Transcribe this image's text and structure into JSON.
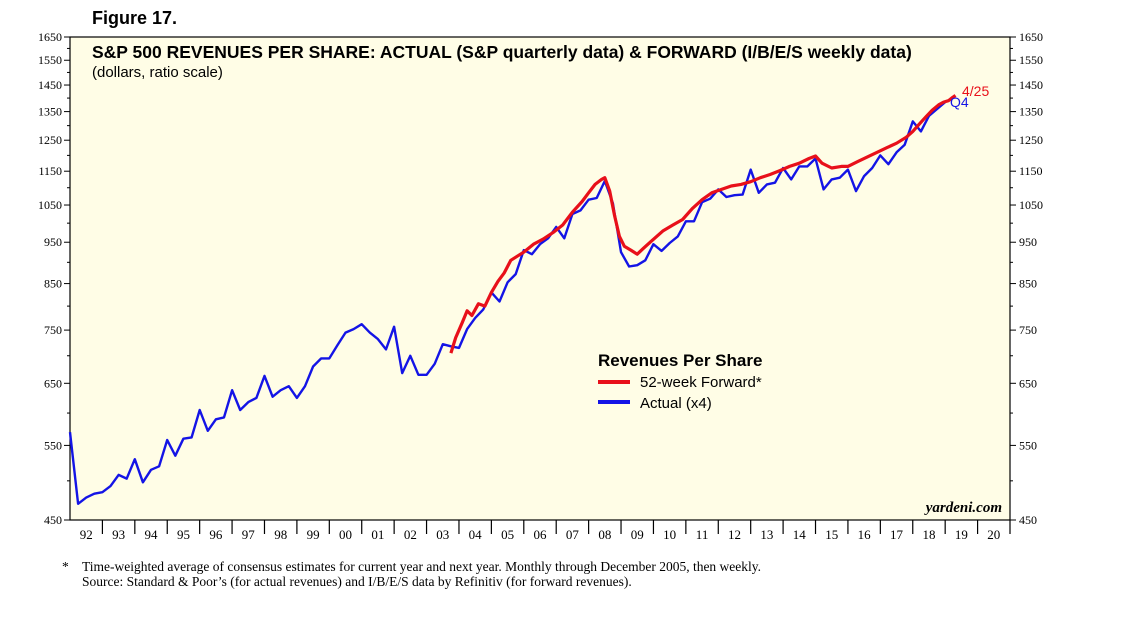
{
  "figure_label": "Figure 17.",
  "credit": "yardeni.com",
  "footnotes": {
    "mark": "*",
    "line1": "Time-weighted average of consensus estimates for current year and next year. Monthly through December 2005, then weekly.",
    "line2": "Source: Standard & Poor’s (for actual revenues) and I/B/E/S data by Refinitiv (for forward revenues)."
  },
  "colors": {
    "forward": "#e8101a",
    "actual": "#1414e6",
    "plot_bg": "#fffde6"
  },
  "chart_data": {
    "type": "line",
    "title": "S&P 500 REVENUES PER SHARE: ACTUAL (S&P quarterly data) & FORWARD (I/B/E/S weekly data)",
    "subtitle": "(dollars, ratio scale)",
    "y_scale": "log",
    "ylim": [
      450,
      1650
    ],
    "y_ticks": [
      450,
      550,
      650,
      750,
      850,
      950,
      1050,
      1150,
      1250,
      1350,
      1450,
      1550,
      1650
    ],
    "x_range": [
      1992,
      2021
    ],
    "x_tick_labels": [
      "92",
      "93",
      "94",
      "95",
      "96",
      "97",
      "98",
      "99",
      "00",
      "01",
      "02",
      "03",
      "04",
      "05",
      "06",
      "07",
      "08",
      "09",
      "10",
      "11",
      "12",
      "13",
      "14",
      "15",
      "16",
      "17",
      "18",
      "19",
      "20"
    ],
    "legend": {
      "title": "Revenues Per Share",
      "position": "center-right"
    },
    "annotations": [
      {
        "text": "4/25",
        "series": "52-week Forward*"
      },
      {
        "text": "Q4",
        "series": "Actual (x4)"
      }
    ],
    "series": [
      {
        "name": "52-week Forward*",
        "points": [
          [
            2003.75,
            705
          ],
          [
            2003.9,
            735
          ],
          [
            2004.1,
            765
          ],
          [
            2004.25,
            790
          ],
          [
            2004.4,
            780
          ],
          [
            2004.6,
            805
          ],
          [
            2004.8,
            800
          ],
          [
            2005.0,
            830
          ],
          [
            2005.2,
            855
          ],
          [
            2005.4,
            875
          ],
          [
            2005.6,
            905
          ],
          [
            2005.8,
            915
          ],
          [
            2006.0,
            925
          ],
          [
            2006.3,
            945
          ],
          [
            2006.6,
            958
          ],
          [
            2006.9,
            975
          ],
          [
            2007.2,
            995
          ],
          [
            2007.5,
            1030
          ],
          [
            2007.8,
            1060
          ],
          [
            2008.0,
            1085
          ],
          [
            2008.2,
            1110
          ],
          [
            2008.4,
            1125
          ],
          [
            2008.5,
            1130
          ],
          [
            2008.65,
            1090
          ],
          [
            2008.8,
            1020
          ],
          [
            2008.95,
            965
          ],
          [
            2009.1,
            940
          ],
          [
            2009.3,
            930
          ],
          [
            2009.5,
            920
          ],
          [
            2009.7,
            935
          ],
          [
            2009.9,
            950
          ],
          [
            2010.1,
            965
          ],
          [
            2010.3,
            980
          ],
          [
            2010.6,
            995
          ],
          [
            2010.9,
            1010
          ],
          [
            2011.2,
            1040
          ],
          [
            2011.5,
            1065
          ],
          [
            2011.8,
            1085
          ],
          [
            2012.1,
            1095
          ],
          [
            2012.4,
            1105
          ],
          [
            2012.7,
            1110
          ],
          [
            2013.0,
            1118
          ],
          [
            2013.3,
            1130
          ],
          [
            2013.6,
            1140
          ],
          [
            2013.9,
            1152
          ],
          [
            2014.2,
            1165
          ],
          [
            2014.5,
            1175
          ],
          [
            2014.8,
            1190
          ],
          [
            2015.0,
            1198
          ],
          [
            2015.2,
            1175
          ],
          [
            2015.5,
            1160
          ],
          [
            2015.8,
            1165
          ],
          [
            2016.0,
            1165
          ],
          [
            2016.3,
            1180
          ],
          [
            2016.6,
            1195
          ],
          [
            2016.9,
            1210
          ],
          [
            2017.2,
            1225
          ],
          [
            2017.5,
            1240
          ],
          [
            2017.8,
            1260
          ],
          [
            2018.0,
            1280
          ],
          [
            2018.2,
            1305
          ],
          [
            2018.4,
            1330
          ],
          [
            2018.6,
            1355
          ],
          [
            2018.8,
            1375
          ],
          [
            2018.95,
            1385
          ],
          [
            2019.1,
            1390
          ],
          [
            2019.2,
            1400
          ],
          [
            2019.32,
            1410
          ]
        ]
      },
      {
        "name": "Actual (x4)",
        "points": [
          [
            1992.0,
            570
          ],
          [
            1992.25,
            470
          ],
          [
            1992.5,
            478
          ],
          [
            1992.75,
            483
          ],
          [
            1993.0,
            485
          ],
          [
            1993.25,
            493
          ],
          [
            1993.5,
            508
          ],
          [
            1993.75,
            503
          ],
          [
            1994.0,
            530
          ],
          [
            1994.25,
            498
          ],
          [
            1994.5,
            515
          ],
          [
            1994.75,
            520
          ],
          [
            1995.0,
            558
          ],
          [
            1995.25,
            535
          ],
          [
            1995.5,
            560
          ],
          [
            1995.75,
            562
          ],
          [
            1996.0,
            605
          ],
          [
            1996.25,
            572
          ],
          [
            1996.5,
            590
          ],
          [
            1996.75,
            593
          ],
          [
            1997.0,
            638
          ],
          [
            1997.25,
            605
          ],
          [
            1997.5,
            618
          ],
          [
            1997.75,
            625
          ],
          [
            1998.0,
            663
          ],
          [
            1998.25,
            627
          ],
          [
            1998.5,
            638
          ],
          [
            1998.75,
            645
          ],
          [
            1999.0,
            625
          ],
          [
            1999.25,
            645
          ],
          [
            1999.5,
            680
          ],
          [
            1999.75,
            695
          ],
          [
            2000.0,
            695
          ],
          [
            2000.25,
            720
          ],
          [
            2000.5,
            745
          ],
          [
            2000.75,
            752
          ],
          [
            2001.0,
            762
          ],
          [
            2001.25,
            745
          ],
          [
            2001.5,
            732
          ],
          [
            2001.75,
            712
          ],
          [
            2002.0,
            757
          ],
          [
            2002.25,
            668
          ],
          [
            2002.5,
            700
          ],
          [
            2002.75,
            665
          ],
          [
            2003.0,
            665
          ],
          [
            2003.25,
            685
          ],
          [
            2003.5,
            722
          ],
          [
            2003.75,
            718
          ],
          [
            2004.0,
            715
          ],
          [
            2004.25,
            752
          ],
          [
            2004.5,
            775
          ],
          [
            2004.75,
            793
          ],
          [
            2005.0,
            830
          ],
          [
            2005.25,
            810
          ],
          [
            2005.5,
            853
          ],
          [
            2005.75,
            872
          ],
          [
            2006.0,
            930
          ],
          [
            2006.25,
            920
          ],
          [
            2006.5,
            945
          ],
          [
            2006.75,
            960
          ],
          [
            2007.0,
            990
          ],
          [
            2007.25,
            960
          ],
          [
            2007.5,
            1025
          ],
          [
            2007.75,
            1035
          ],
          [
            2008.0,
            1065
          ],
          [
            2008.25,
            1070
          ],
          [
            2008.5,
            1120
          ],
          [
            2008.75,
            1055
          ],
          [
            2009.0,
            925
          ],
          [
            2009.25,
            890
          ],
          [
            2009.5,
            893
          ],
          [
            2009.75,
            905
          ],
          [
            2010.0,
            945
          ],
          [
            2010.25,
            928
          ],
          [
            2010.5,
            948
          ],
          [
            2010.75,
            965
          ],
          [
            2011.0,
            1005
          ],
          [
            2011.25,
            1005
          ],
          [
            2011.5,
            1058
          ],
          [
            2011.75,
            1068
          ],
          [
            2012.0,
            1095
          ],
          [
            2012.25,
            1073
          ],
          [
            2012.5,
            1078
          ],
          [
            2012.75,
            1080
          ],
          [
            2013.0,
            1155
          ],
          [
            2013.25,
            1085
          ],
          [
            2013.5,
            1110
          ],
          [
            2013.75,
            1115
          ],
          [
            2014.0,
            1160
          ],
          [
            2014.25,
            1125
          ],
          [
            2014.5,
            1165
          ],
          [
            2014.75,
            1165
          ],
          [
            2015.0,
            1190
          ],
          [
            2015.25,
            1095
          ],
          [
            2015.5,
            1125
          ],
          [
            2015.75,
            1130
          ],
          [
            2016.0,
            1155
          ],
          [
            2016.25,
            1090
          ],
          [
            2016.5,
            1135
          ],
          [
            2016.75,
            1160
          ],
          [
            2017.0,
            1200
          ],
          [
            2017.25,
            1172
          ],
          [
            2017.5,
            1210
          ],
          [
            2017.75,
            1235
          ],
          [
            2018.0,
            1315
          ],
          [
            2018.25,
            1280
          ],
          [
            2018.5,
            1335
          ],
          [
            2018.75,
            1360
          ],
          [
            2019.0,
            1385
          ]
        ]
      }
    ]
  }
}
